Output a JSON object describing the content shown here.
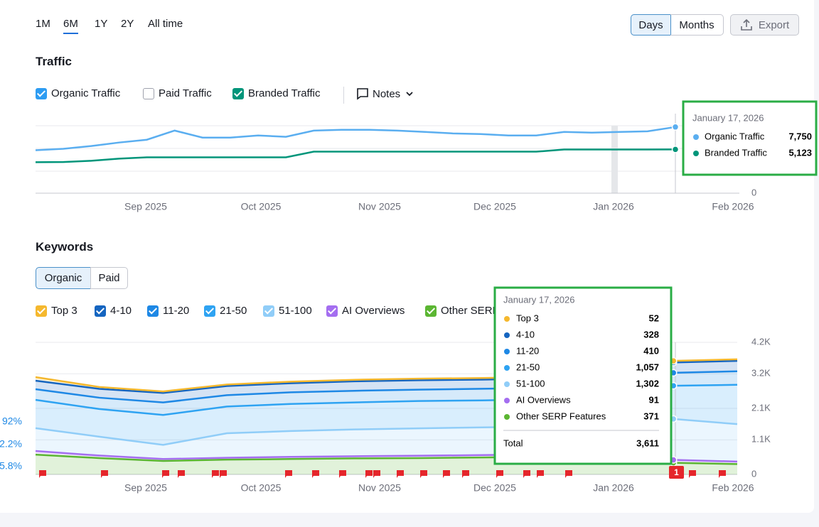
{
  "period_tabs": [
    "1M",
    "6M",
    "1Y",
    "2Y",
    "All time"
  ],
  "view_toggle": [
    "Days",
    "Months"
  ],
  "export": "Export",
  "traffic": {
    "title": "Traffic",
    "filters": [
      "Organic Traffic",
      "Paid Traffic",
      "Branded Traffic"
    ],
    "notes": "Notes",
    "chart": {
      "ylim": [
        0,
        7900
      ],
      "yticks": [
        0
      ],
      "x_labels": [
        "Sep 2025",
        "Oct 2025",
        "Nov 2025",
        "Dec 2025",
        "Jan 2026",
        "Feb 2026"
      ],
      "series": [
        {
          "color": "#5aaef0",
          "values": [
            5030,
            5200,
            5520,
            5930,
            6260,
            7330,
            6510,
            6510,
            6760,
            6600,
            7330,
            7420,
            7420,
            7330,
            7170,
            7000,
            6920,
            6760,
            6760,
            7170,
            7090,
            7170,
            7250,
            7750
          ]
        },
        {
          "color": "#00957a",
          "values": [
            3630,
            3650,
            3790,
            4040,
            4200,
            4200,
            4200,
            4200,
            4200,
            4200,
            4860,
            4860,
            4860,
            4860,
            4860,
            4860,
            4860,
            4860,
            4860,
            5110,
            5110,
            5110,
            5110,
            5123
          ]
        }
      ]
    },
    "tooltip": {
      "date": "January 17, 2026",
      "rows": [
        {
          "label": "Organic Traffic",
          "value": "7,750"
        },
        {
          "label": "Branded Traffic",
          "value": "5,123"
        }
      ]
    }
  },
  "keywords": {
    "title": "Keywords",
    "toggle": [
      "Organic",
      "Paid"
    ],
    "legend": [
      "Top 3",
      "4-10",
      "11-20",
      "21-50",
      "51-100",
      "AI Overviews",
      "Other SERP Features"
    ],
    "left_labels": [
      "92%",
      "2.2%",
      "5.8%"
    ],
    "notes_badge": "1",
    "chart": {
      "ylim": [
        0,
        4200
      ],
      "yticks": [
        {
          "value": 4200,
          "label": "4.2K"
        },
        {
          "value": 3200,
          "label": "3.2K"
        },
        {
          "value": 2100,
          "label": "2.1K"
        },
        {
          "value": 1100,
          "label": "1.1K"
        },
        0
      ],
      "x_labels": [
        "Sep 2025",
        "Oct 2025",
        "Nov 2025",
        "Dec 2025",
        "Jan 2026",
        "Feb 2026"
      ],
      "series": [
        {
          "color": "#5bb632",
          "values": [
            630,
            520,
            430,
            470,
            490,
            510,
            520,
            540,
            560,
            540,
            371,
            330
          ]
        },
        {
          "color": "#a46ef0",
          "values": [
            115,
            80,
            60,
            60,
            70,
            70,
            75,
            75,
            80,
            85,
            91,
            80
          ]
        },
        {
          "color": "#90cdf8",
          "values": [
            725,
            600,
            450,
            780,
            820,
            850,
            870,
            880,
            880,
            900,
            1302,
            1190
          ]
        },
        {
          "color": "#2ea3f2",
          "values": [
            900,
            880,
            950,
            850,
            860,
            860,
            870,
            860,
            870,
            880,
            1057,
            1250
          ]
        },
        {
          "color": "#1e88e5",
          "values": [
            340,
            360,
            400,
            360,
            370,
            370,
            360,
            370,
            360,
            380,
            410,
            430
          ]
        },
        {
          "color": "#1565c0",
          "values": [
            270,
            280,
            300,
            290,
            290,
            300,
            300,
            290,
            300,
            320,
            328,
            330
          ]
        },
        {
          "color": "#f5b82e",
          "values": [
            113,
            60,
            50,
            50,
            50,
            50,
            50,
            50,
            50,
            50,
            52,
            50
          ]
        }
      ]
    },
    "tooltip": {
      "date": "January 17, 2026",
      "rows": [
        {
          "label": "Top 3",
          "value": "52"
        },
        {
          "label": "4-10",
          "value": "328"
        },
        {
          "label": "11-20",
          "value": "410"
        },
        {
          "label": "21-50",
          "value": "1,057"
        },
        {
          "label": "51-100",
          "value": "1,302"
        },
        {
          "label": "AI Overviews",
          "value": "91"
        },
        {
          "label": "Other SERP Features",
          "value": "371"
        }
      ],
      "total_label": "Total",
      "total_value": "3,611"
    }
  }
}
